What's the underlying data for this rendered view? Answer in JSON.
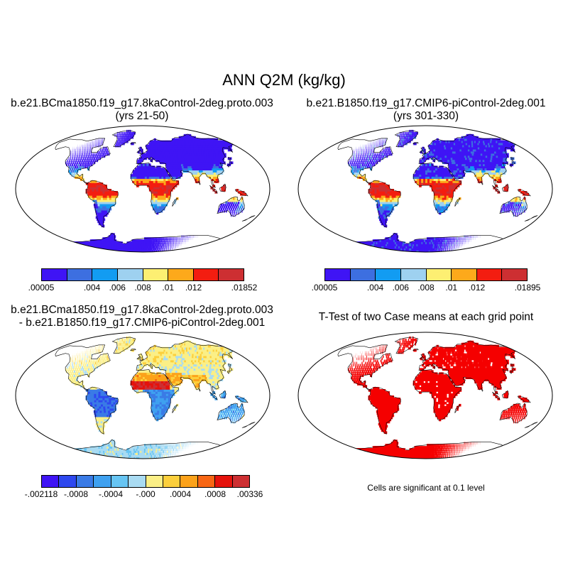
{
  "title": "ANN Q2M (kg/kg)",
  "panels": [
    {
      "title_line1": "b.e21.BCma1850.f19_g17.8kaControl-2deg.proto.003",
      "title_line2": "(yrs 21-50)",
      "palette": [
        "#3f14f5",
        "#3d6fe0",
        "#129cf2",
        "#9ed1f0",
        "#fdef72",
        "#fda91b",
        "#f31d10",
        "#cd2f32"
      ],
      "tick_labels": [
        ".00005",
        ".004",
        ".006",
        ".008",
        ".01",
        ".012",
        ".01852"
      ],
      "tick_positions": [
        0,
        2,
        3,
        4,
        5,
        6,
        8
      ]
    },
    {
      "title_line1": "b.e21.B1850.f19_g17.CMIP6-piControl-2deg.001",
      "title_line2": "(yrs 301-330)",
      "palette": [
        "#3f14f5",
        "#3d6fe0",
        "#129cf2",
        "#9ed1f0",
        "#fdef72",
        "#fda91b",
        "#f31d10",
        "#cd2f32"
      ],
      "tick_labels": [
        ".00005",
        ".004",
        ".006",
        ".008",
        ".01",
        ".012",
        ".01895"
      ],
      "tick_positions": [
        0,
        2,
        3,
        4,
        5,
        6,
        8
      ]
    },
    {
      "title_line1": "b.e21.BCma1850.f19_g17.8kaControl-2deg.proto.003",
      "title_line2": "- b.e21.B1850.f19_g17.CMIP6-piControl-2deg.001",
      "palette": [
        "#3f14f5",
        "#2e48ef",
        "#3a7be6",
        "#3fa1f0",
        "#67c5f3",
        "#a9dbf2",
        "#fbef86",
        "#fccf3c",
        "#fca21a",
        "#f86614",
        "#e5120c",
        "#cd2f32"
      ],
      "tick_labels": [
        "-.002118",
        "-.0008",
        "-.0004",
        "-.000",
        ".0004",
        ".0008",
        ".00336"
      ],
      "tick_positions": [
        0,
        2,
        4,
        6,
        8,
        10,
        12
      ]
    },
    {
      "title_line1": "T-Test of two Case means at each grid point",
      "note": "Cells are significant at 0.1 level"
    }
  ],
  "colors": {
    "significant": "#f50000",
    "ocean": "#ffffff",
    "coast": "#000000"
  }
}
